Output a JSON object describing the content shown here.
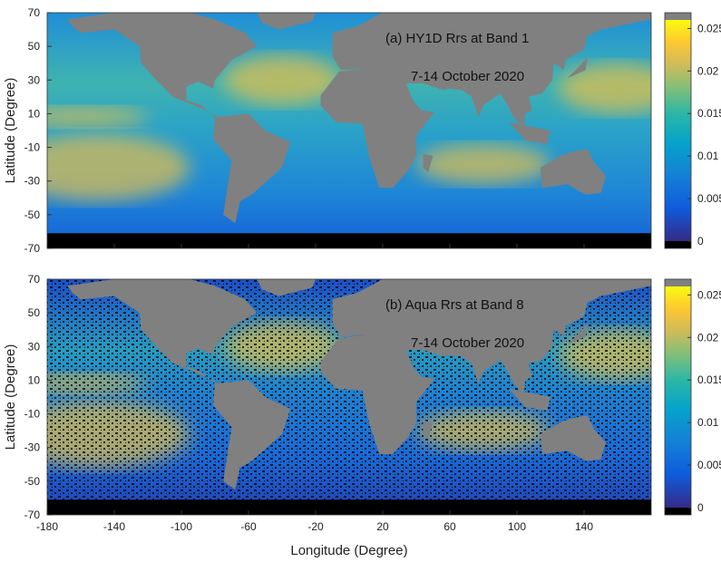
{
  "chart_data": [
    {
      "type": "map",
      "title": "(a) HY1D Rrs at Band 1",
      "subtitle": "7-14 October 2020",
      "ylabel": "Latitude (Degree)",
      "xlim": [
        -180,
        180
      ],
      "ylim": [
        -70,
        70
      ],
      "xticks": [
        -180,
        -140,
        -100,
        -60,
        -20,
        20,
        60,
        100,
        140
      ],
      "yticks": [
        -70,
        -50,
        -30,
        -10,
        10,
        30,
        50,
        70
      ],
      "xtick_labels": false,
      "style": "full",
      "colorbar": {
        "clim": [
          0,
          0.026
        ],
        "ticks": [
          0,
          0.005,
          0.01,
          0.015,
          0.02,
          0.025
        ]
      }
    },
    {
      "type": "map",
      "title": "(b) Aqua Rrs at Band 8",
      "subtitle": "7-14 October 2020",
      "ylabel": "Latitude (Degree)",
      "xlabel": "Longitude (Degree)",
      "xlim": [
        -180,
        180
      ],
      "ylim": [
        -70,
        70
      ],
      "xticks": [
        -180,
        -140,
        -100,
        -60,
        -20,
        20,
        60,
        100,
        140
      ],
      "yticks": [
        -70,
        -50,
        -30,
        -10,
        10,
        30,
        50,
        70
      ],
      "xtick_labels": true,
      "style": "sparse",
      "colorbar": {
        "clim": [
          0,
          0.026
        ],
        "ticks": [
          0,
          0.005,
          0.01,
          0.015,
          0.02,
          0.025
        ]
      }
    }
  ]
}
